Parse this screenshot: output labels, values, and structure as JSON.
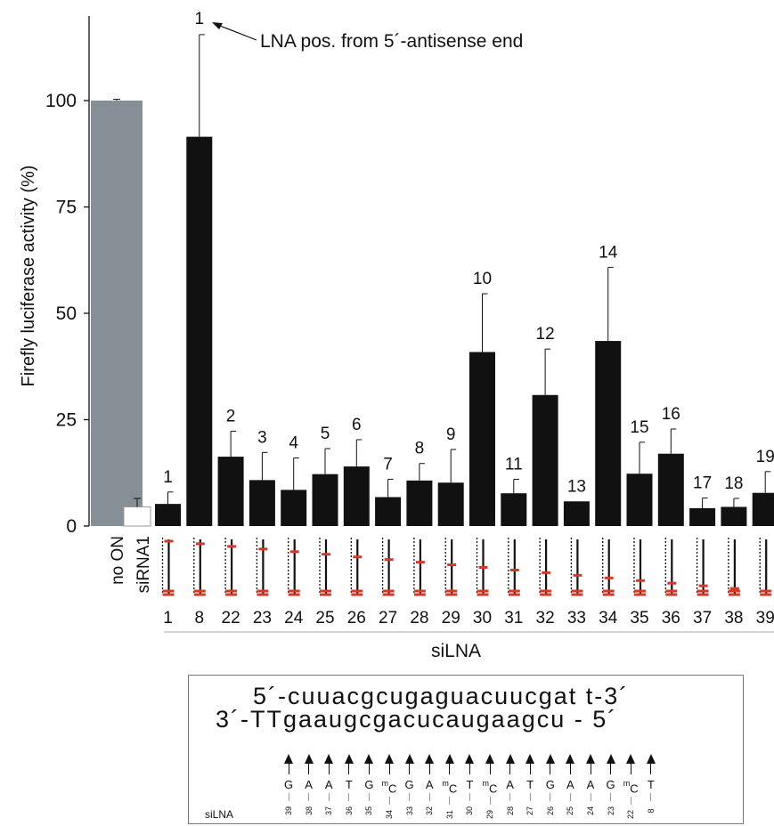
{
  "chart_data": {
    "type": "bar",
    "ylabel": "Firefly luciferase activity (%)",
    "ylim": [
      0,
      120
    ],
    "yticks": [
      0,
      25,
      50,
      75,
      100
    ],
    "xlabel": "siLNA",
    "annotation": "LNA pos. from 5´-antisense end",
    "control_bars": [
      {
        "label": "no ON",
        "value": 100,
        "error": 0.3,
        "color": "#868e96"
      },
      {
        "label": "siRNA1",
        "value": 4.5,
        "error": 2,
        "color": "#ffffff"
      }
    ],
    "categories": [
      "1",
      "8",
      "22",
      "23",
      "24",
      "25",
      "26",
      "27",
      "28",
      "29",
      "30",
      "31",
      "32",
      "33",
      "34",
      "35",
      "36",
      "37",
      "38",
      "39"
    ],
    "values": [
      5.2,
      91.5,
      16.3,
      10.8,
      8.5,
      12.2,
      14,
      6.8,
      10.7,
      10.2,
      40.9,
      7.7,
      30.8,
      5.8,
      43.5,
      12.3,
      17,
      4.2,
      4.5,
      7.8
    ],
    "errors": [
      2.8,
      24,
      6,
      6.5,
      7.5,
      6,
      6.3,
      4.2,
      4,
      7.8,
      13.7,
      3.3,
      10.8,
      0,
      17.3,
      7.4,
      5.8,
      2.4,
      2,
      5
    ],
    "bar_labels": [
      "1",
      "",
      "2",
      "3",
      "4",
      "5",
      "6",
      "7",
      "8",
      "9",
      "10",
      "11",
      "12",
      "13",
      "14",
      "15",
      "16",
      "17",
      "18",
      "19"
    ],
    "top_label": "1",
    "colors": {
      "bars": "#111111",
      "control": "#868e96",
      "lna_marker": "#d23a2a"
    }
  },
  "sequence_box": {
    "sense": "5´-cuuacgcugaguacuucgat t-3´",
    "antisense": "3´-TTgaaugcgacucaugaagcu - 5´",
    "label": "siLNA",
    "columns": [
      {
        "base": "G",
        "mod": "",
        "pos": "39"
      },
      {
        "base": "A",
        "mod": "",
        "pos": "38"
      },
      {
        "base": "A",
        "mod": "",
        "pos": "37"
      },
      {
        "base": "T",
        "mod": "",
        "pos": "36"
      },
      {
        "base": "G",
        "mod": "",
        "pos": "35"
      },
      {
        "base": "C",
        "mod": "m",
        "pos": "34"
      },
      {
        "base": "G",
        "mod": "",
        "pos": "33"
      },
      {
        "base": "A",
        "mod": "",
        "pos": "32"
      },
      {
        "base": "C",
        "mod": "m",
        "pos": "31"
      },
      {
        "base": "T",
        "mod": "",
        "pos": "30"
      },
      {
        "base": "C",
        "mod": "m",
        "pos": "29"
      },
      {
        "base": "A",
        "mod": "",
        "pos": "28"
      },
      {
        "base": "T",
        "mod": "",
        "pos": "27"
      },
      {
        "base": "G",
        "mod": "",
        "pos": "26"
      },
      {
        "base": "A",
        "mod": "",
        "pos": "25"
      },
      {
        "base": "A",
        "mod": "",
        "pos": "24"
      },
      {
        "base": "G",
        "mod": "",
        "pos": "23"
      },
      {
        "base": "C",
        "mod": "m",
        "pos": "22"
      },
      {
        "base": "T",
        "mod": "",
        "pos": "8"
      }
    ]
  }
}
